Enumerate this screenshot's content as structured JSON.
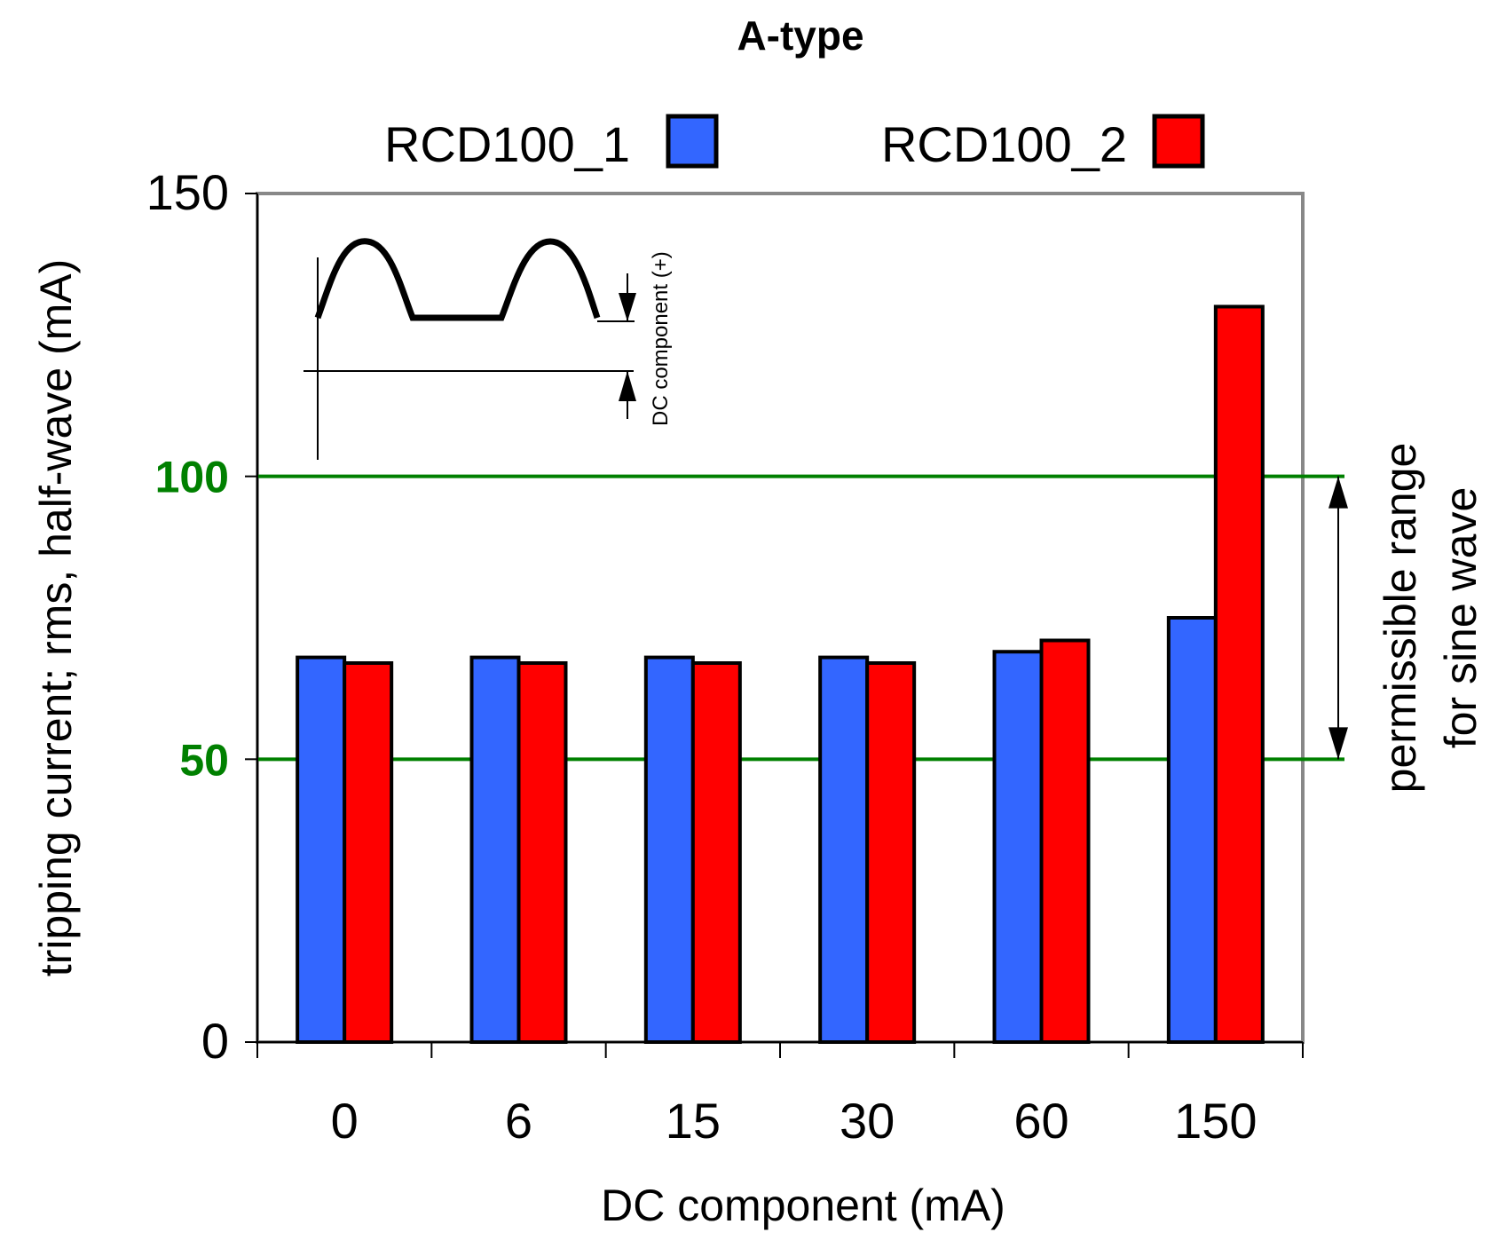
{
  "chart_data": {
    "type": "bar",
    "title": "A-type",
    "xlabel": "DC component (mA)",
    "ylabel": "tripping current; rms, half-wave (mA)",
    "categories": [
      "0",
      "6",
      "15",
      "30",
      "60",
      "150"
    ],
    "series": [
      {
        "name": "RCD100_1",
        "color": "#3366ff",
        "values": [
          68,
          68,
          68,
          68,
          69,
          75
        ]
      },
      {
        "name": "RCD100_2",
        "color": "#ff0000",
        "values": [
          67,
          67,
          67,
          67,
          71,
          130
        ]
      }
    ],
    "ylim": [
      0,
      150
    ],
    "yticks": [
      {
        "value": 0,
        "label": "0",
        "color": "#000000"
      },
      {
        "value": 50,
        "label": "50",
        "color": "#008000"
      },
      {
        "value": 100,
        "label": "100",
        "color": "#008000"
      },
      {
        "value": 150,
        "label": "150",
        "color": "#000000"
      }
    ],
    "reference_lines": [
      {
        "value": 50,
        "color": "#008000"
      },
      {
        "value": 100,
        "color": "#008000"
      }
    ],
    "permissible_range": {
      "from": 50,
      "to": 100,
      "label_line1": "permissible range",
      "label_line2": "for sine wave"
    },
    "inset_annotation": "DC component (+)",
    "grid": false,
    "legend_position": "top"
  }
}
